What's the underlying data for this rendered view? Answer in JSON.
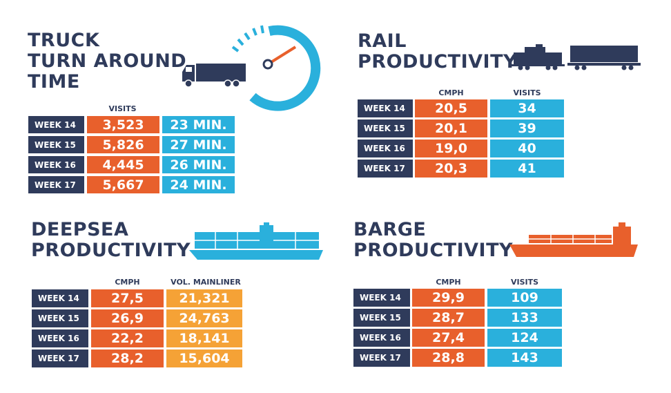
{
  "colors": {
    "navy": "#2f3b5b",
    "orange": "#e8602c",
    "blue": "#2ab0dc",
    "yellow": "#f5a236"
  },
  "truck": {
    "title": [
      "TRUCK",
      "TURN AROUND",
      "TIME"
    ],
    "header_visits": "VISITS",
    "rows": [
      {
        "week": "WEEK 14",
        "visits": "3,523",
        "time": "23 MIN."
      },
      {
        "week": "WEEK 15",
        "visits": "5,826",
        "time": "27 MIN."
      },
      {
        "week": "WEEK 16",
        "visits": "4,445",
        "time": "26 MIN."
      },
      {
        "week": "WEEK 17",
        "visits": "5,667",
        "time": "24 MIN."
      }
    ],
    "icons": [
      "speedometer-icon",
      "truck-icon"
    ]
  },
  "rail": {
    "title": [
      "RAIL",
      "PRODUCTIVITY"
    ],
    "header_cmph": "CMPH",
    "header_visits": "VISITS",
    "rows": [
      {
        "week": "WEEK 14",
        "cmph": "20,5",
        "visits": "34"
      },
      {
        "week": "WEEK 15",
        "cmph": "20,1",
        "visits": "39"
      },
      {
        "week": "WEEK 16",
        "cmph": "19,0",
        "visits": "40"
      },
      {
        "week": "WEEK 17",
        "cmph": "20,3",
        "visits": "41"
      }
    ],
    "icons": [
      "train-icon"
    ]
  },
  "deepsea": {
    "title": [
      "DEEPSEA",
      "PRODUCTIVITY"
    ],
    "header_cmph": "CMPH",
    "header_vol": "VOL. MAINLINER",
    "rows": [
      {
        "week": "WEEK 14",
        "cmph": "27,5",
        "vol": "21,321"
      },
      {
        "week": "WEEK 15",
        "cmph": "26,9",
        "vol": "24,763"
      },
      {
        "week": "WEEK 16",
        "cmph": "22,2",
        "vol": "18,141"
      },
      {
        "week": "WEEK 17",
        "cmph": "28,2",
        "vol": "15,604"
      }
    ],
    "icons": [
      "container-ship-icon"
    ]
  },
  "barge": {
    "title": [
      "BARGE",
      "PRODUCTIVITY"
    ],
    "header_cmph": "CMPH",
    "header_visits": "VISITS",
    "rows": [
      {
        "week": "WEEK 14",
        "cmph": "29,9",
        "visits": "109"
      },
      {
        "week": "WEEK 15",
        "cmph": "28,7",
        "visits": "133"
      },
      {
        "week": "WEEK 16",
        "cmph": "27,4",
        "visits": "124"
      },
      {
        "week": "WEEK 17",
        "cmph": "28,8",
        "visits": "143"
      }
    ],
    "icons": [
      "barge-icon"
    ]
  }
}
